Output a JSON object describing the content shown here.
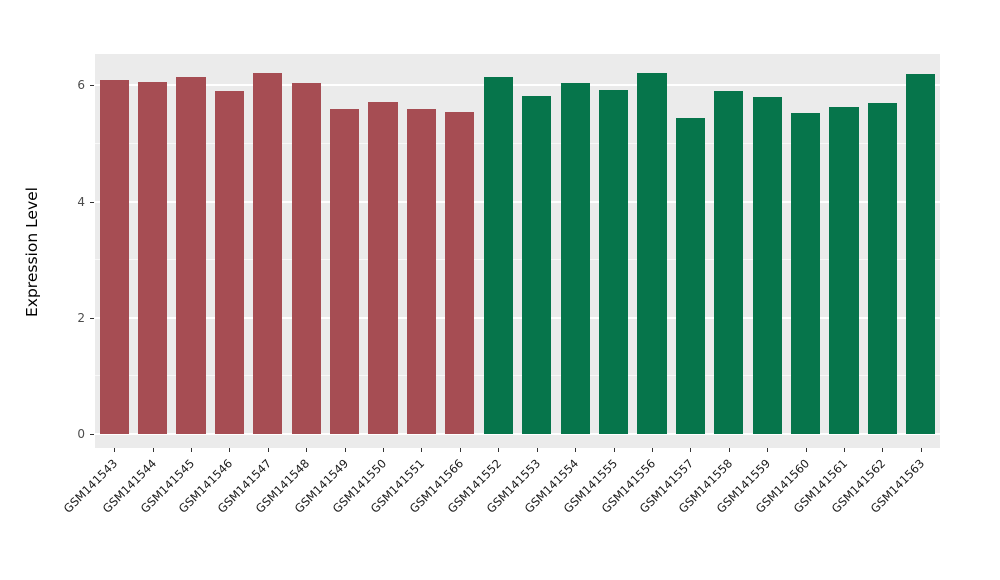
{
  "chart_data": {
    "type": "bar",
    "title": "",
    "xlabel": "",
    "ylabel": "Expression Level",
    "ylim": [
      0,
      6.54
    ],
    "yticks": [
      0,
      2,
      4,
      6
    ],
    "yticks_minor": [
      1,
      3,
      5
    ],
    "grid": true,
    "legend_position": "none",
    "panel_background": "#EBEBEB",
    "gridline_color": "#FFFFFF",
    "group_colors": {
      "group1": "#A64D53",
      "group2": "#06754B"
    },
    "categories": [
      "GSM141543",
      "GSM141544",
      "GSM141545",
      "GSM141546",
      "GSM141547",
      "GSM141548",
      "GSM141549",
      "GSM141550",
      "GSM141551",
      "GSM141566",
      "GSM141552",
      "GSM141553",
      "GSM141554",
      "GSM141555",
      "GSM141556",
      "GSM141557",
      "GSM141558",
      "GSM141559",
      "GSM141560",
      "GSM141561",
      "GSM141562",
      "GSM141563"
    ],
    "values": [
      6.1,
      6.06,
      6.15,
      5.9,
      6.21,
      6.04,
      5.6,
      5.71,
      5.6,
      5.55,
      6.15,
      5.82,
      6.04,
      5.92,
      6.21,
      5.44,
      5.9,
      5.8,
      5.53,
      5.63,
      5.7,
      6.2
    ],
    "bar_groups": [
      "group1",
      "group1",
      "group1",
      "group1",
      "group1",
      "group1",
      "group1",
      "group1",
      "group1",
      "group1",
      "group2",
      "group2",
      "group2",
      "group2",
      "group2",
      "group2",
      "group2",
      "group2",
      "group2",
      "group2",
      "group2",
      "group2"
    ]
  }
}
